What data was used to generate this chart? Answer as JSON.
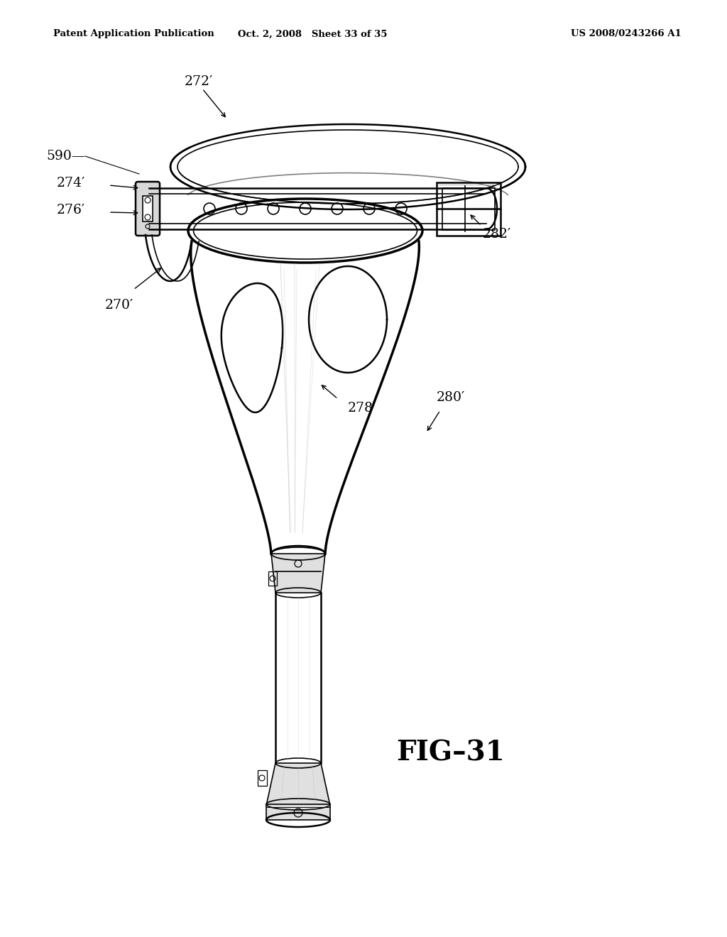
{
  "background_color": "#ffffff",
  "header_left": "Patent Application Publication",
  "header_middle": "Oct. 2, 2008   Sheet 33 of 35",
  "header_right": "US 2008/0243266 A1",
  "figure_label": "FIG–31"
}
